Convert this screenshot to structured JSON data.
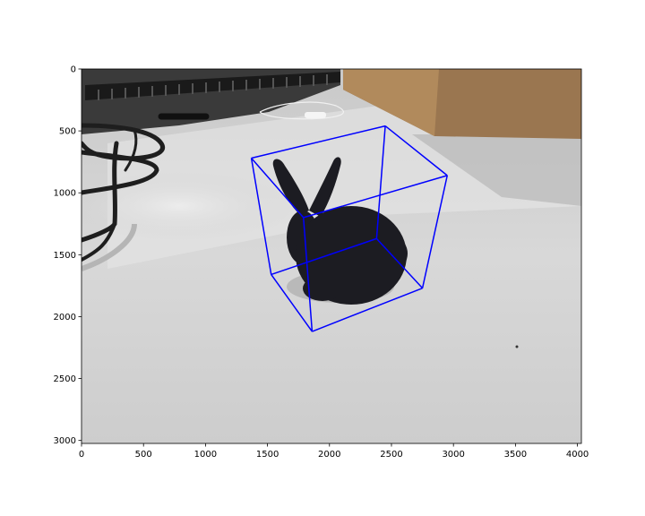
{
  "chart_data": {
    "type": "image",
    "title": "",
    "xlabel": "",
    "ylabel": "",
    "xlim": [
      0,
      4032
    ],
    "ylim": [
      3024,
      0
    ],
    "y_axis_inverted": true,
    "x_ticks": [
      0,
      500,
      1000,
      1500,
      2000,
      2500,
      3000,
      3500,
      4000
    ],
    "y_ticks": [
      0,
      500,
      1000,
      1500,
      2000,
      2500,
      3000
    ],
    "x_tick_labels": [
      "0",
      "500",
      "1000",
      "1500",
      "2000",
      "2500",
      "3000",
      "3500",
      "4000"
    ],
    "y_tick_labels": [
      "0",
      "500",
      "1000",
      "1500",
      "2000",
      "2500",
      "3000"
    ],
    "grid": false,
    "legend": "none",
    "image_content": "photograph of a black bunny figurine on a light grey desk, with cables at left and a cardboard box at top right",
    "bounding_box_3d": {
      "color": "#0000ff",
      "vertices": [
        [
          1370,
          720
        ],
        [
          2450,
          460
        ],
        [
          2950,
          860
        ],
        [
          1790,
          1200
        ],
        [
          1530,
          1660
        ],
        [
          2380,
          1370
        ],
        [
          2750,
          1770
        ],
        [
          1860,
          2120
        ]
      ],
      "edges": [
        [
          0,
          1
        ],
        [
          1,
          2
        ],
        [
          2,
          3
        ],
        [
          3,
          0
        ],
        [
          4,
          5
        ],
        [
          5,
          6
        ],
        [
          6,
          7
        ],
        [
          7,
          4
        ],
        [
          0,
          4
        ],
        [
          1,
          5
        ],
        [
          2,
          6
        ],
        [
          3,
          7
        ]
      ]
    }
  }
}
